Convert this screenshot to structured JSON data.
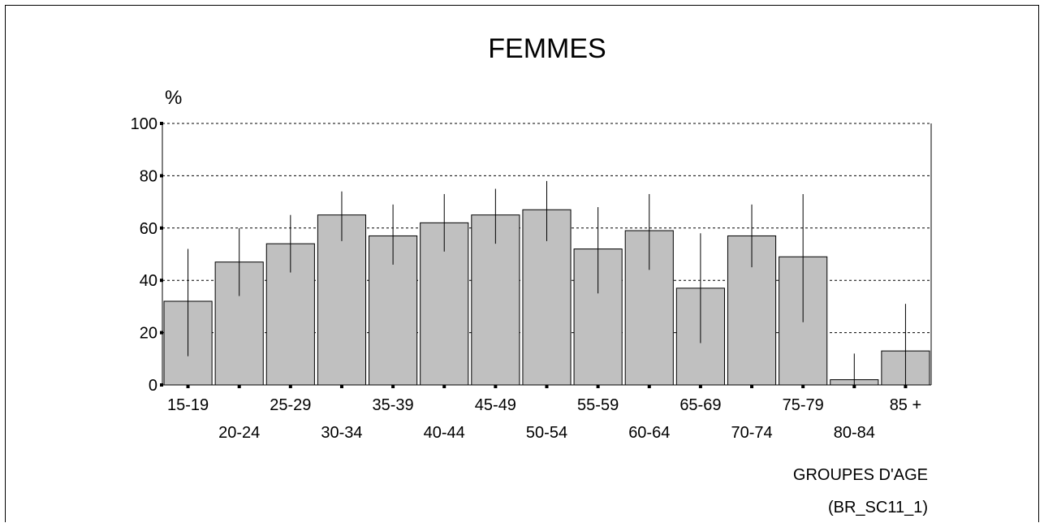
{
  "chart_data": {
    "type": "bar",
    "title": "FEMMES",
    "ylabel": "%",
    "xlabel": "GROUPES D'AGE",
    "source_code": "(BR_SC11_1)",
    "ylim": [
      0,
      100
    ],
    "yticks": [
      0,
      20,
      40,
      60,
      80,
      100
    ],
    "grid": "horizontal-dashed",
    "categories": [
      "15-19",
      "20-24",
      "25-29",
      "30-34",
      "35-39",
      "40-44",
      "45-49",
      "50-54",
      "55-59",
      "60-64",
      "65-69",
      "70-74",
      "75-79",
      "80-84",
      "85 +"
    ],
    "values": [
      32,
      47,
      54,
      65,
      57,
      62,
      65,
      67,
      52,
      59,
      37,
      57,
      49,
      2,
      13
    ],
    "ci_low": [
      11,
      34,
      43,
      55,
      46,
      51,
      54,
      55,
      35,
      44,
      16,
      45,
      24,
      0,
      0
    ],
    "ci_high": [
      52,
      60,
      65,
      74,
      69,
      73,
      75,
      78,
      68,
      73,
      58,
      69,
      73,
      12,
      31
    ],
    "bar_color": "#c0c0c0"
  }
}
